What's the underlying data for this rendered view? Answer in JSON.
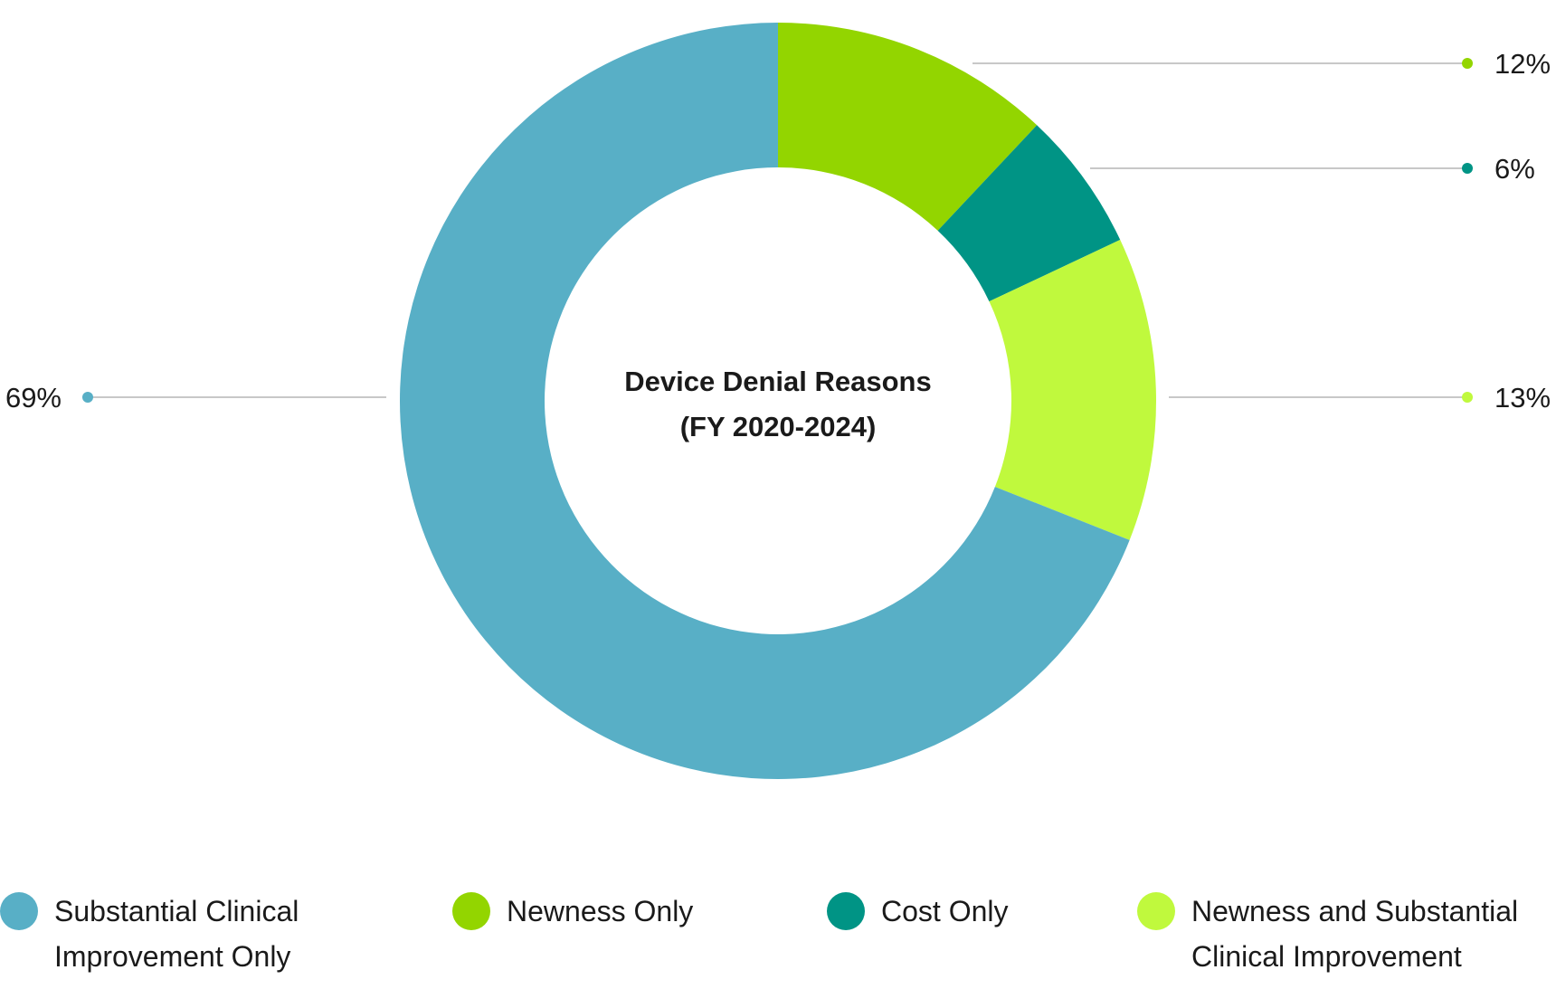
{
  "chart_data": {
    "type": "donut",
    "title": "Device Denial Reasons",
    "subtitle": "(FY 2020-2024)",
    "series": [
      {
        "name": "Newness Only",
        "value": 12,
        "label": "12%",
        "color": "#93d500"
      },
      {
        "name": "Cost Only",
        "value": 6,
        "label": "6%",
        "color": "#009485"
      },
      {
        "name": "Newness and Substantial Clinical Improvement",
        "value": 13,
        "label": "13%",
        "color": "#c0f93d"
      },
      {
        "name": "Substantial Clinical Improvement Only",
        "value": 69,
        "label": "69%",
        "color": "#58afc6"
      }
    ],
    "legend_position": "bottom",
    "legend": [
      {
        "line1": "Substantial Clinical",
        "line2": "Improvement Only",
        "color": "#58afc6"
      },
      {
        "line1": "Newness Only",
        "line2": "",
        "color": "#93d500"
      },
      {
        "line1": "Cost Only",
        "line2": "",
        "color": "#009485"
      },
      {
        "line1": "Newness and Substantial",
        "line2": "Clinical Improvement",
        "color": "#c0f93d"
      }
    ]
  }
}
